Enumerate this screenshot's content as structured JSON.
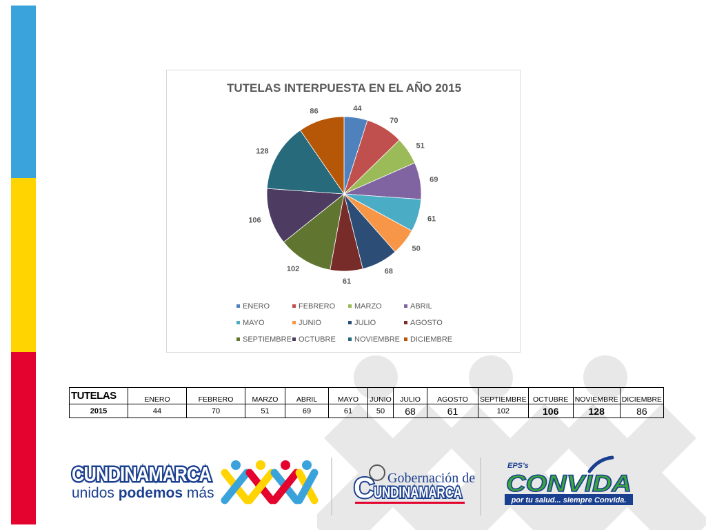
{
  "chart_data": {
    "type": "pie",
    "title": "TUTELAS INTERPUESTA EN EL AÑO 2015",
    "categories": [
      "ENERO",
      "FEBRERO",
      "MARZO",
      "ABRIL",
      "MAYO",
      "JUNIO",
      "JULIO",
      "AGOSTO",
      "SEPTIEMBRE",
      "OCTUBRE",
      "NOVIEMBRE",
      "DICIEMBRE"
    ],
    "values": [
      44,
      70,
      51,
      69,
      61,
      50,
      68,
      61,
      102,
      106,
      128,
      86
    ],
    "colors": [
      "#4f81bd",
      "#c0504d",
      "#9bbb59",
      "#8064a2",
      "#4bacc6",
      "#f79646",
      "#2c4d75",
      "#772c2a",
      "#5f7530",
      "#4d3b62",
      "#276a7c",
      "#b65708"
    ],
    "legend_position": "bottom"
  },
  "table": {
    "header_label": "TUTELAS",
    "months": [
      "ENERO",
      "FEBRERO",
      "MARZO",
      "ABRIL",
      "MAYO",
      "JUNIO",
      "JULIO",
      "AGOSTO",
      "SEPTIEMBRE",
      "OCTUBRE",
      "NOVIEMBRE",
      "DICIEMBRE"
    ],
    "row_label": "2015",
    "values": [
      "44",
      "70",
      "51",
      "69",
      "61",
      "50",
      "68",
      "61",
      "102",
      "106",
      "128",
      "86"
    ]
  },
  "logos": {
    "cundinamarca_name": "CUNDINAMARCA",
    "cundinamarca_slogan_1": "unidos ",
    "cundinamarca_slogan_2": "podemos",
    "cundinamarca_slogan_3": " más",
    "gobernacion_line1": "Gobernación de",
    "gobernacion_line2": "UNDINAMARCA",
    "gobernacion_initial": "C",
    "convida_eps": "EPS's",
    "convida_name": "CONVIDA",
    "convida_tagline": "por tu salud... siempre Convida."
  }
}
